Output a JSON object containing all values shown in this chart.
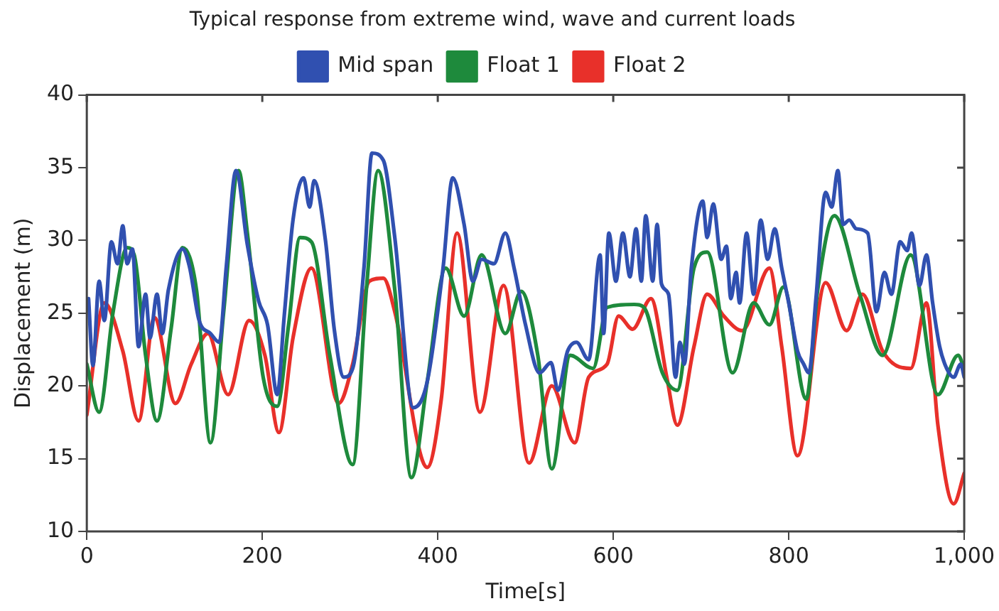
{
  "chart_data": {
    "type": "line",
    "title": "Typical response from extreme wind, wave and current loads",
    "xlabel": "Time[s]",
    "ylabel": "Displacement (m)",
    "xlim": [
      0,
      1000
    ],
    "xticks": [
      0,
      200,
      400,
      600,
      800,
      {
        "value": 1000,
        "label": "1,000"
      }
    ],
    "ylim": [
      10,
      40
    ],
    "yticks": [
      10,
      15,
      20,
      25,
      30,
      35,
      40
    ],
    "grid": false,
    "legend": "top",
    "marker": "none",
    "line_style": "solid",
    "series": [
      {
        "name": "Mid span",
        "color": "#3050b0",
        "x": [
          2,
          7,
          14,
          20,
          28,
          35,
          41,
          46,
          52,
          59,
          67,
          72,
          80,
          86,
          93,
          109,
          117,
          128,
          141,
          151,
          159,
          170,
          183,
          196,
          206,
          217,
          225,
          235,
          247,
          254,
          259,
          272,
          282,
          293,
          303,
          316,
          325,
          338,
          351,
          372,
          388,
          406,
          417,
          430,
          440,
          450,
          464,
          477,
          487,
          500,
          516,
          529,
          537,
          548,
          558,
          572,
          585,
          589,
          595,
          603,
          611,
          619,
          626,
          632,
          637,
          645,
          650,
          655,
          663,
          671,
          676,
          681,
          689,
          702,
          707,
          714,
          723,
          729,
          734,
          740,
          744,
          752,
          760,
          768,
          776,
          784,
          792,
          800,
          810,
          817,
          823,
          831,
          842,
          849,
          856,
          862,
          869,
          877,
          890,
          900,
          909,
          917,
          927,
          935,
          940,
          949,
          957,
          964,
          972,
          980,
          988,
          996,
          1000
        ],
        "values": [
          26,
          21.4,
          27.2,
          24.5,
          29.9,
          28.4,
          31,
          28.4,
          29.4,
          22.7,
          26.3,
          23.3,
          26.3,
          23.6,
          26.6,
          29.4,
          28.2,
          24.5,
          23.6,
          23,
          28.2,
          34.8,
          29.7,
          25.8,
          24.2,
          19.4,
          24.8,
          31.4,
          34.3,
          32.3,
          34.1,
          30,
          23.9,
          20.6,
          21.2,
          28.2,
          36,
          35.5,
          30.2,
          18.5,
          20.3,
          28.1,
          34.3,
          31.1,
          27.2,
          28.7,
          28.4,
          30.5,
          28.1,
          24.2,
          20.9,
          21.6,
          19.7,
          22.4,
          23,
          21.8,
          29,
          23.6,
          30.5,
          27.2,
          30.5,
          27.5,
          30.8,
          27.2,
          31.7,
          27.2,
          31.1,
          27,
          26.3,
          20.6,
          23,
          21.5,
          28.1,
          32.7,
          30.2,
          32.5,
          28.7,
          29.6,
          26,
          27.8,
          25.7,
          30.5,
          26.3,
          31.4,
          28.7,
          30.8,
          28.1,
          25.7,
          22.4,
          21.5,
          20.9,
          26,
          33.3,
          32.3,
          34.8,
          31.1,
          31.4,
          30.8,
          30.5,
          25.1,
          27.8,
          26.3,
          29.9,
          29.3,
          30.5,
          26.9,
          29,
          25.7,
          22.7,
          21.2,
          20.6,
          21.5,
          20.6
        ]
      },
      {
        "name": "Float 1",
        "color": "#1e8a3c",
        "x": [
          0,
          14,
          30,
          46,
          54,
          67,
          80,
          96,
          109,
          125,
          141,
          156,
          173,
          183,
          201,
          217,
          230,
          243,
          256,
          277,
          303,
          319,
          332,
          351,
          370,
          388,
          409,
          430,
          450,
          477,
          495,
          514,
          530,
          551,
          577,
          593,
          624,
          635,
          656,
          673,
          692,
          707,
          736,
          760,
          778,
          794,
          820,
          833,
          852,
          881,
          907,
          939,
          970,
          993,
          1000
        ],
        "values": [
          21.5,
          18.2,
          25.1,
          29.5,
          29,
          22.1,
          17.6,
          23.9,
          29.5,
          26.6,
          16.1,
          25.1,
          34.8,
          30.5,
          20.6,
          18.6,
          24.2,
          30.2,
          29.9,
          22.1,
          14.6,
          26.9,
          34.8,
          26.6,
          13.7,
          20.3,
          28.1,
          24.8,
          29,
          23.6,
          26.5,
          22.1,
          14.3,
          22.1,
          21.2,
          25.4,
          25.6,
          25.4,
          20.9,
          19.7,
          28.1,
          29.2,
          20.9,
          25.7,
          24.2,
          26.8,
          19.1,
          26.6,
          31.7,
          26.3,
          22.1,
          29,
          19.4,
          22.1,
          21.2
        ]
      },
      {
        "name": "Float 2",
        "color": "#e8302a",
        "x": [
          0,
          20,
          41,
          59,
          77,
          101,
          119,
          138,
          161,
          185,
          203,
          219,
          235,
          256,
          287,
          303,
          322,
          338,
          351,
          388,
          404,
          422,
          448,
          475,
          504,
          530,
          556,
          572,
          593,
          606,
          622,
          643,
          661,
          673,
          692,
          707,
          726,
          747,
          778,
          792,
          810,
          842,
          866,
          884,
          907,
          939,
          957,
          970,
          988,
          1000
        ],
        "values": [
          18,
          25.7,
          22.4,
          17.6,
          24.7,
          18.8,
          21.5,
          23.6,
          19.4,
          24.5,
          22.1,
          16.8,
          23.3,
          28.1,
          18.8,
          21.5,
          27.2,
          27.4,
          25.1,
          14.4,
          19.1,
          30.5,
          18.2,
          26.9,
          14.7,
          20,
          16.1,
          20.6,
          21.5,
          24.8,
          23.9,
          26,
          20.6,
          17.3,
          22.7,
          26.3,
          24.8,
          23.8,
          28.1,
          22.7,
          15.2,
          27.1,
          23.8,
          26.3,
          22.4,
          21.2,
          25.7,
          17.3,
          11.9,
          14
        ]
      }
    ]
  }
}
